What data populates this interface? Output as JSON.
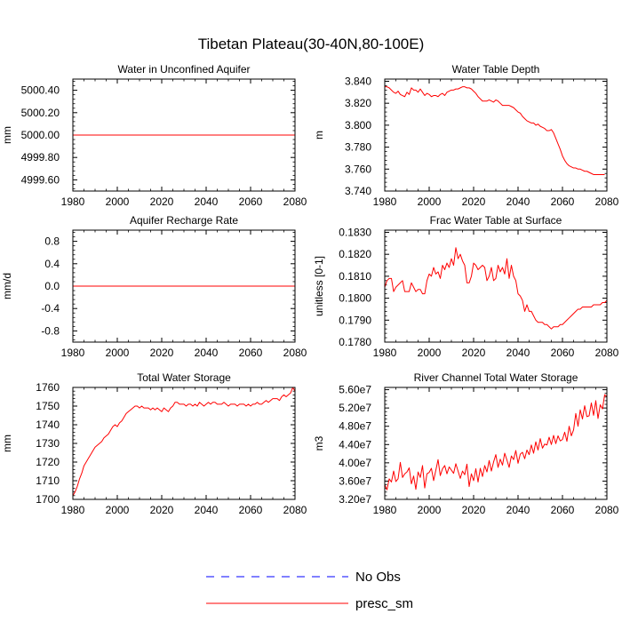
{
  "title": "Tibetan Plateau(30-40N,80-100E)",
  "colors": {
    "presc_sm": "#ff0000",
    "no_obs": "#0000ff"
  },
  "legend": [
    {
      "label": "No Obs",
      "style": "dashed",
      "color": "#0000ff"
    },
    {
      "label": "presc_sm",
      "style": "solid",
      "color": "#ff0000"
    }
  ],
  "chart_data": [
    {
      "type": "line",
      "title": "Water in Unconfined Aquifer",
      "ylabel": "mm",
      "xlim": [
        1980,
        2080
      ],
      "ylim": [
        4999.5,
        5000.5
      ],
      "xticks": [
        1980,
        2000,
        2020,
        2040,
        2060,
        2080
      ],
      "yticks": [
        4999.6,
        4999.8,
        5000.0,
        5000.2,
        5000.4
      ],
      "yticklabels": [
        "4999.60",
        "4999.80",
        "5000.00",
        "5000.20",
        "5000.40"
      ],
      "x_start": 1980,
      "x_step": 1,
      "series": [
        {
          "name": "presc_sm",
          "values": [
            5000,
            5000
          ]
        }
      ],
      "x": [
        1980,
        2080
      ]
    },
    {
      "type": "line",
      "title": "Water Table Depth",
      "ylabel": "m",
      "xlim": [
        1980,
        2080
      ],
      "ylim": [
        3.74,
        3.842
      ],
      "xticks": [
        1980,
        2000,
        2020,
        2040,
        2060,
        2080
      ],
      "yticks": [
        3.74,
        3.76,
        3.78,
        3.8,
        3.82,
        3.84
      ],
      "yticklabels": [
        "3.740",
        "3.760",
        "3.780",
        "3.800",
        "3.820",
        "3.840"
      ],
      "x_start": 1980,
      "x_step": 1,
      "series": [
        {
          "name": "presc_sm",
          "values": [
            3.835,
            3.835,
            3.834,
            3.832,
            3.83,
            3.829,
            3.831,
            3.828,
            3.827,
            3.826,
            3.83,
            3.828,
            3.834,
            3.832,
            3.832,
            3.83,
            3.833,
            3.83,
            3.827,
            3.829,
            3.828,
            3.826,
            3.827,
            3.827,
            3.826,
            3.828,
            3.829,
            3.827,
            3.83,
            3.831,
            3.832,
            3.832,
            3.833,
            3.833,
            3.834,
            3.835,
            3.835,
            3.834,
            3.834,
            3.833,
            3.831,
            3.829,
            3.826,
            3.824,
            3.822,
            3.822,
            3.822,
            3.823,
            3.822,
            3.821,
            3.823,
            3.822,
            3.82,
            3.818,
            3.818,
            3.818,
            3.818,
            3.817,
            3.816,
            3.814,
            3.812,
            3.811,
            3.808,
            3.806,
            3.804,
            3.803,
            3.802,
            3.802,
            3.8,
            3.801,
            3.799,
            3.798,
            3.797,
            3.795,
            3.795,
            3.796,
            3.793,
            3.788,
            3.783,
            3.778,
            3.772,
            3.768,
            3.765,
            3.763,
            3.762,
            3.761,
            3.761,
            3.76,
            3.76,
            3.759,
            3.758,
            3.758,
            3.757,
            3.756,
            3.755,
            3.755,
            3.755,
            3.755,
            3.755,
            3.755
          ]
        }
      ]
    },
    {
      "type": "line",
      "title": "Aquifer Recharge Rate",
      "ylabel": "mm/d",
      "xlim": [
        1980,
        2080
      ],
      "ylim": [
        -1.0,
        1.0
      ],
      "xticks": [
        1980,
        2000,
        2020,
        2040,
        2060,
        2080
      ],
      "yticks": [
        -0.8,
        -0.4,
        0.0,
        0.4,
        0.8
      ],
      "yticklabels": [
        "-0.8",
        "-0.4",
        "0.0",
        "0.4",
        "0.8"
      ],
      "x_start": 1980,
      "x_step": 1,
      "series": [
        {
          "name": "presc_sm",
          "values": [
            0,
            0
          ]
        }
      ],
      "x": [
        1980,
        2080
      ]
    },
    {
      "type": "line",
      "title": "Frac Water Table at Surface",
      "ylabel": "unitless [0-1]",
      "xlim": [
        1980,
        2080
      ],
      "ylim": [
        0.178,
        0.1831
      ],
      "xticks": [
        1980,
        2000,
        2020,
        2040,
        2060,
        2080
      ],
      "yticks": [
        0.178,
        0.179,
        0.18,
        0.181,
        0.182,
        0.183
      ],
      "yticklabels": [
        "0.1780",
        "0.1790",
        "0.1800",
        "0.1810",
        "0.1820",
        "0.1830"
      ],
      "x_start": 1980,
      "x_step": 1,
      "series": [
        {
          "name": "presc_sm",
          "values": [
            0.1805,
            0.1808,
            0.1809,
            0.1809,
            0.1803,
            0.1805,
            0.1806,
            0.1807,
            0.1808,
            0.1803,
            0.1803,
            0.1803,
            0.1807,
            0.1805,
            0.1803,
            0.1804,
            0.1804,
            0.1802,
            0.1802,
            0.1808,
            0.1811,
            0.181,
            0.1814,
            0.1811,
            0.1812,
            0.1809,
            0.1815,
            0.1813,
            0.1816,
            0.1814,
            0.1818,
            0.1815,
            0.1823,
            0.1818,
            0.182,
            0.1817,
            0.1815,
            0.1807,
            0.1807,
            0.181,
            0.1816,
            0.1815,
            0.1813,
            0.1814,
            0.1815,
            0.1814,
            0.1808,
            0.181,
            0.1814,
            0.1808,
            0.1809,
            0.1815,
            0.1812,
            0.1814,
            0.1811,
            0.1818,
            0.1809,
            0.1815,
            0.181,
            0.1808,
            0.1802,
            0.1801,
            0.1799,
            0.1794,
            0.1797,
            0.1794,
            0.1794,
            0.1792,
            0.179,
            0.1789,
            0.1789,
            0.1789,
            0.1788,
            0.1788,
            0.1787,
            0.1786,
            0.1787,
            0.1787,
            0.1787,
            0.1788,
            0.1788,
            0.1789,
            0.179,
            0.1791,
            0.1792,
            0.1793,
            0.1794,
            0.1795,
            0.1795,
            0.1796,
            0.1796,
            0.1796,
            0.1796,
            0.1796,
            0.1797,
            0.1797,
            0.1797,
            0.1797,
            0.1798,
            0.1798,
            0.1799
          ]
        }
      ]
    },
    {
      "type": "line",
      "title": "Total Water Storage",
      "ylabel": "mm",
      "xlim": [
        1980,
        2080
      ],
      "ylim": [
        1700,
        1760
      ],
      "xticks": [
        1980,
        2000,
        2020,
        2040,
        2060,
        2080
      ],
      "yticks": [
        1700,
        1710,
        1720,
        1730,
        1740,
        1750,
        1760
      ],
      "yticklabels": [
        "1700",
        "1710",
        "1720",
        "1730",
        "1740",
        "1750",
        "1760"
      ],
      "x_start": 1980,
      "x_step": 1,
      "series": [
        {
          "name": "presc_sm",
          "values": [
            1702,
            1704,
            1707,
            1711,
            1714,
            1718,
            1720,
            1722,
            1724,
            1726,
            1728,
            1729,
            1730,
            1731,
            1733,
            1734,
            1735,
            1737,
            1739,
            1740,
            1739,
            1741,
            1742,
            1744,
            1746,
            1747,
            1748,
            1749,
            1750,
            1750,
            1749,
            1750,
            1749,
            1749,
            1749,
            1748,
            1749,
            1748,
            1749,
            1748,
            1747,
            1749,
            1748,
            1747,
            1749,
            1750,
            1752,
            1752,
            1751,
            1751,
            1751,
            1750,
            1751,
            1751,
            1750,
            1751,
            1750,
            1752,
            1751,
            1750,
            1751,
            1752,
            1751,
            1752,
            1752,
            1751,
            1751,
            1751,
            1752,
            1751,
            1750,
            1751,
            1751,
            1751,
            1750,
            1751,
            1751,
            1751,
            1750,
            1751,
            1750,
            1751,
            1751,
            1752,
            1751,
            1751,
            1752,
            1753,
            1752,
            1753,
            1754,
            1754,
            1754,
            1753,
            1755,
            1756,
            1755,
            1756,
            1757,
            1760,
            1758
          ]
        }
      ]
    },
    {
      "type": "line",
      "title": "River Channel Total Water Storage",
      "ylabel": "m3",
      "xlim": [
        1980,
        2080
      ],
      "ylim": [
        32000000,
        56500000
      ],
      "xticks": [
        1980,
        2000,
        2020,
        2040,
        2060,
        2080
      ],
      "yticks": [
        32000000,
        36000000,
        40000000,
        44000000,
        48000000,
        52000000,
        56000000
      ],
      "yticklabels": [
        "3.20e7",
        "3.60e7",
        "4.00e7",
        "4.40e7",
        "4.80e7",
        "5.20e7",
        "5.60e7"
      ],
      "x_start": 1980,
      "x_step": 1,
      "series": [
        {
          "name": "presc_sm",
          "values": [
            35200000,
            34100000,
            36500000,
            35800000,
            38200000,
            35900000,
            36500000,
            40100000,
            36800000,
            37600000,
            38000000,
            38900000,
            35400000,
            37100000,
            34200000,
            38000000,
            36800000,
            39400000,
            34500000,
            37600000,
            37900000,
            38800000,
            36100000,
            38400000,
            40700000,
            37200000,
            38700000,
            39400000,
            37600000,
            39100000,
            38400000,
            37700000,
            39800000,
            38200000,
            36600000,
            38200000,
            37400000,
            39700000,
            34800000,
            37600000,
            36100000,
            38700000,
            35800000,
            38800000,
            37000000,
            39400000,
            38000000,
            40500000,
            38200000,
            40200000,
            41800000,
            39000000,
            40800000,
            39500000,
            42100000,
            40600000,
            39000000,
            41500000,
            40700000,
            42700000,
            39900000,
            41900000,
            42300000,
            40900000,
            42800000,
            41800000,
            43900000,
            42100000,
            44600000,
            42800000,
            45300000,
            43200000,
            44100000,
            43900000,
            45600000,
            44000000,
            46000000,
            44200000,
            45900000,
            44800000,
            45100000,
            46700000,
            44700000,
            48000000,
            45900000,
            47200000,
            50800000,
            48000000,
            51600000,
            49600000,
            52500000,
            50100000,
            50300000,
            53100000,
            50400000,
            53600000,
            49700000,
            52700000,
            51800000,
            54900000,
            54500000
          ]
        }
      ]
    }
  ]
}
